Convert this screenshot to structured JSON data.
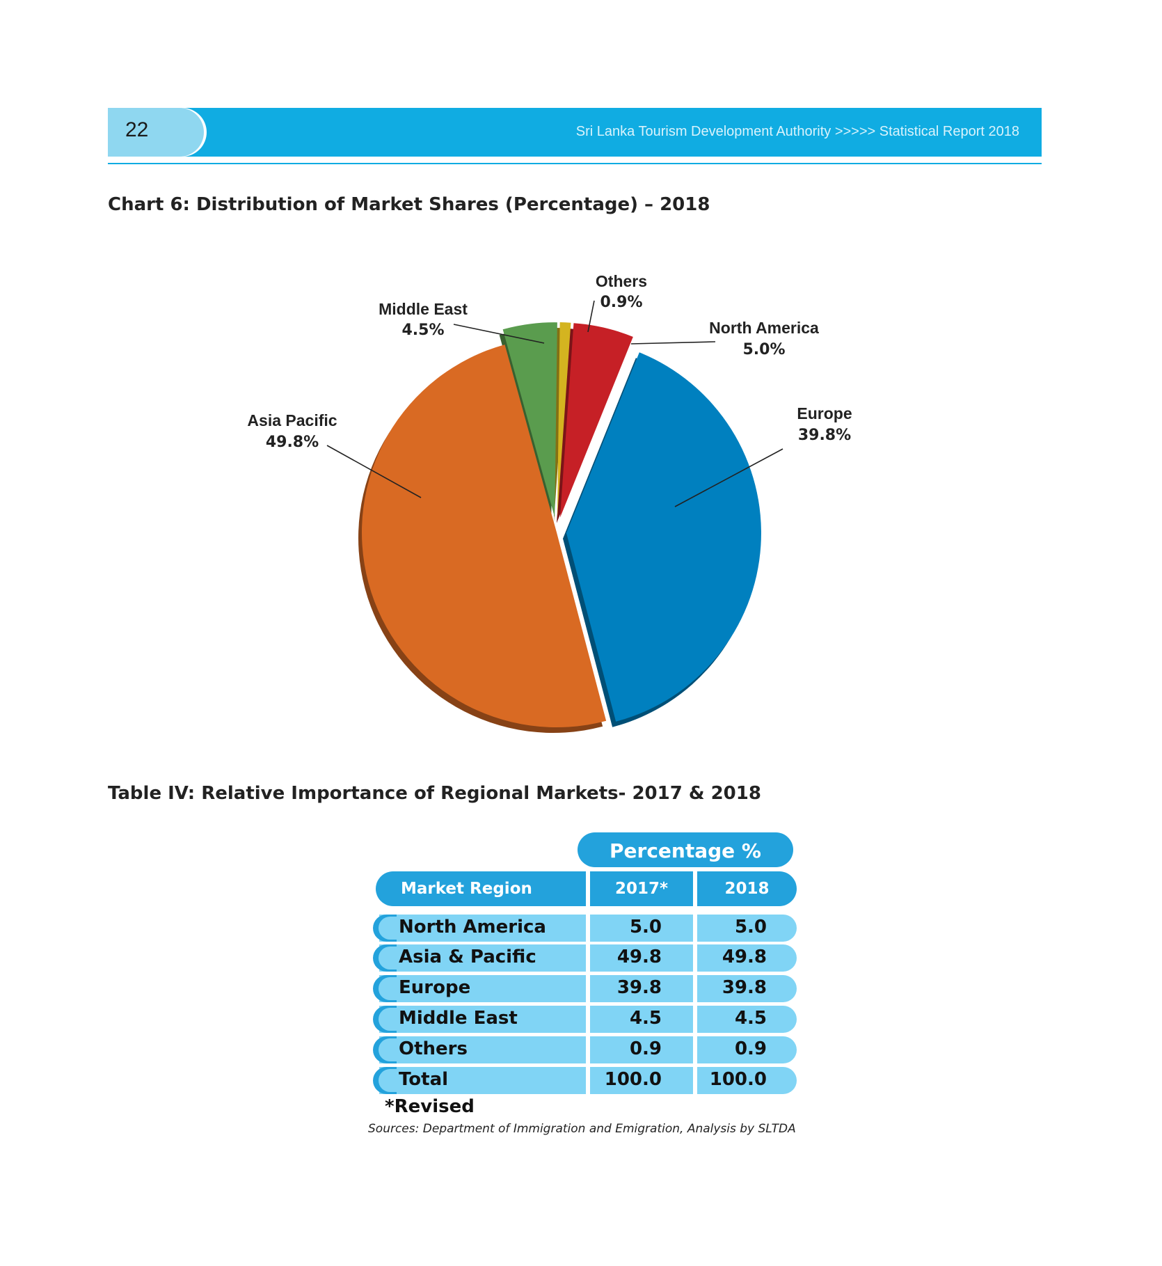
{
  "header": {
    "page_number": "22",
    "running_title": "Sri Lanka Tourism Development Authority >>>>> Statistical Report 2018",
    "band_color": "#10ace2",
    "tab_color": "#8fd7f0"
  },
  "chart_title": "Chart 6: Distribution of Market Shares (Percentage) – 2018",
  "chart_data": {
    "type": "pie",
    "title": "Chart 6: Distribution of Market Shares (Percentage) – 2018",
    "style": "3d-exploded",
    "slices": [
      {
        "label": "Europe",
        "value": 39.8,
        "display": "39.8%",
        "color": "#0080bf",
        "exploded": true
      },
      {
        "label": "Asia Pacific",
        "value": 49.8,
        "display": "49.8%",
        "color": "#d96a23",
        "exploded": false
      },
      {
        "label": "Middle East",
        "value": 4.5,
        "display": "4.5%",
        "color": "#5a9c4e",
        "exploded": true
      },
      {
        "label": "Others",
        "value": 0.9,
        "display": "0.9%",
        "color": "#d4b420",
        "exploded": true
      },
      {
        "label": "North America",
        "value": 5.0,
        "display": "5.0%",
        "color": "#c62026",
        "exploded": true
      }
    ]
  },
  "table_title": "Table IV: Relative Importance of Regional Markets- 2017 & 2018",
  "table": {
    "group_header": "Percentage %",
    "columns": [
      "Market Region",
      "2017*",
      "2018"
    ],
    "rows": [
      {
        "region": "North America",
        "y2017": "5.0",
        "y2018": "5.0"
      },
      {
        "region": "Asia & Pacific",
        "y2017": "49.8",
        "y2018": "49.8"
      },
      {
        "region": "Europe",
        "y2017": "39.8",
        "y2018": "39.8"
      },
      {
        "region": "Middle East",
        "y2017": "4.5",
        "y2018": "4.5"
      },
      {
        "region": "Others",
        "y2017": "0.9",
        "y2018": "0.9"
      },
      {
        "region": "Total",
        "y2017": "100.0",
        "y2018": "100.0"
      }
    ],
    "note": "*Revised",
    "source": "Sources: Department of Immigration and Emigration, Analysis by SLTDA",
    "header_color": "#23a2dc",
    "row_color": "#80d4f5"
  }
}
